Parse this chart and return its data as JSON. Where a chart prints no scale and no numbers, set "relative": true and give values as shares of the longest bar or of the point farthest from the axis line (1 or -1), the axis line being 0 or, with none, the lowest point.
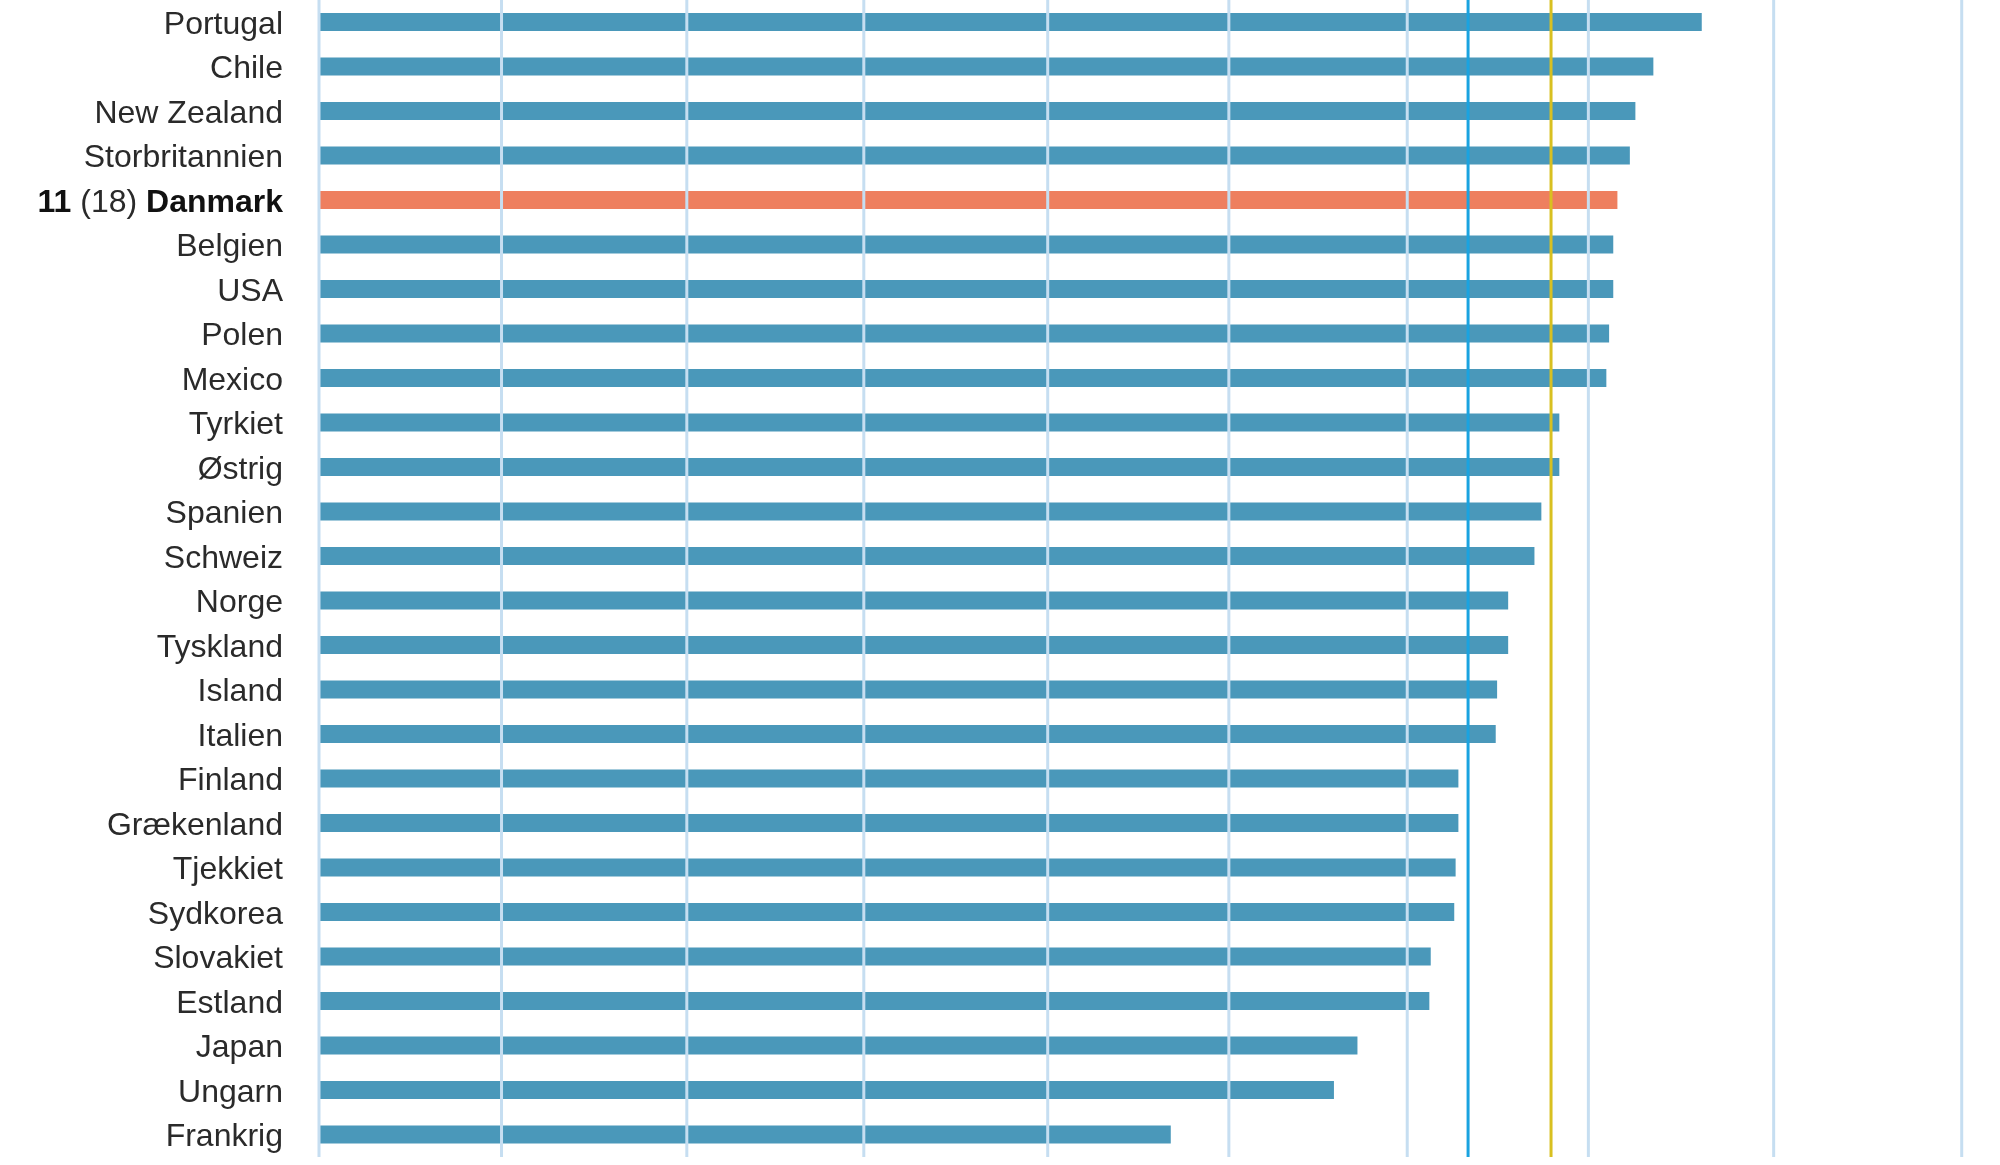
{
  "chart_data": {
    "type": "bar",
    "orientation": "horizontal",
    "relative": true,
    "categories": [
      "Portugal",
      "Chile",
      "New Zealand",
      "Storbritannien",
      "11 (18) Danmark",
      "Belgien",
      "USA",
      "Polen",
      "Mexico",
      "Tyrkiet",
      "Østrig",
      "Spanien",
      "Schweiz",
      "Norge",
      "Tyskland",
      "Island",
      "Italien",
      "Finland",
      "Grækenland",
      "Tjekkiet",
      "Sydkorea",
      "Slovakiet",
      "Estland",
      "Japan",
      "Ungarn",
      "Frankrig"
    ],
    "values": [
      1,
      0.965,
      0.952,
      0.948,
      0.939,
      0.936,
      0.936,
      0.933,
      0.931,
      0.897,
      0.897,
      0.884,
      0.879,
      0.86,
      0.86,
      0.852,
      0.851,
      0.824,
      0.824,
      0.822,
      0.821,
      0.804,
      0.803,
      0.751,
      0.734,
      0.616
    ],
    "colors": [
      "#4a98ba",
      "#4a98ba",
      "#4a98ba",
      "#4a98ba",
      "#ee7f5f",
      "#4a98ba",
      "#4a98ba",
      "#4a98ba",
      "#4a98ba",
      "#4a98ba",
      "#4a98ba",
      "#4a98ba",
      "#4a98ba",
      "#4a98ba",
      "#4a98ba",
      "#4a98ba",
      "#4a98ba",
      "#4a98ba",
      "#4a98ba",
      "#4a98ba",
      "#4a98ba",
      "#4a98ba",
      "#4a98ba",
      "#4a98ba",
      "#4a98ba",
      "#4a98ba"
    ],
    "ref_lines": [
      {
        "axis": "x",
        "value": 0.132,
        "color": "#c6def1"
      },
      {
        "axis": "x",
        "value": 0.266,
        "color": "#c6def1"
      },
      {
        "axis": "x",
        "value": 0.394,
        "color": "#c6def1"
      },
      {
        "axis": "x",
        "value": 0.527,
        "color": "#c6def1"
      },
      {
        "axis": "x",
        "value": 0.658,
        "color": "#c6def1"
      },
      {
        "axis": "x",
        "value": 0.787,
        "color": "#c6def1"
      },
      {
        "axis": "x",
        "value": 0.918,
        "color": "#c6def1"
      },
      {
        "axis": "x",
        "value": 1.052,
        "color": "#c6def1"
      },
      {
        "axis": "x",
        "value": 1.188,
        "color": "#c6def1"
      },
      {
        "axis": "x",
        "value": 0.831,
        "color": "#1aa3e0"
      },
      {
        "axis": "x",
        "value": 0.891,
        "color": "#d8c020"
      }
    ]
  }
}
